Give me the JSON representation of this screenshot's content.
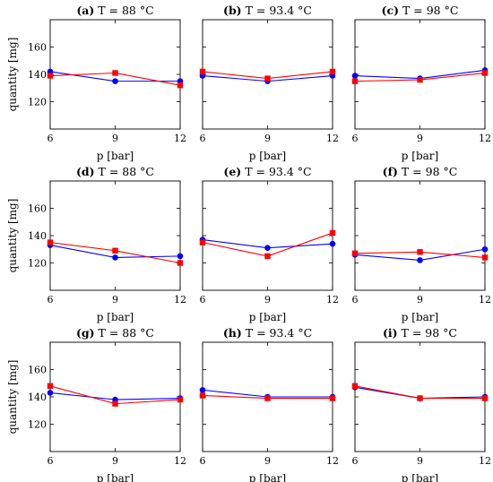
{
  "figure": {
    "colors": {
      "blue": "#0000ff",
      "red": "#ff0000"
    }
  },
  "chart_data": [
    {
      "type": "line",
      "tag": "(a)",
      "title": "T = 88 °C",
      "xlabel": "p [bar]",
      "ylabel": "quantity [mg]",
      "x": [
        6,
        9,
        12
      ],
      "xlim": [
        6,
        12
      ],
      "ylim": [
        100,
        180
      ],
      "xticks": [
        6,
        9,
        12
      ],
      "yticks": [
        120,
        140,
        160
      ],
      "series": [
        {
          "color": "blue",
          "marker": "circle",
          "values": [
            142,
            135,
            135
          ]
        },
        {
          "color": "red",
          "marker": "square",
          "values": [
            139,
            141,
            132
          ]
        }
      ]
    },
    {
      "type": "line",
      "tag": "(b)",
      "title": "T = 93.4 °C",
      "xlabel": "p [bar]",
      "ylabel": "",
      "x": [
        6,
        9,
        12
      ],
      "xlim": [
        6,
        12
      ],
      "ylim": [
        100,
        180
      ],
      "xticks": [
        6,
        9,
        12
      ],
      "yticks": [],
      "series": [
        {
          "color": "blue",
          "marker": "circle",
          "values": [
            139,
            135,
            139
          ]
        },
        {
          "color": "red",
          "marker": "square",
          "values": [
            142,
            137,
            142
          ]
        }
      ]
    },
    {
      "type": "line",
      "tag": "(c)",
      "title": "T = 98 °C",
      "xlabel": "p [bar]",
      "ylabel": "",
      "x": [
        6,
        9,
        12
      ],
      "xlim": [
        6,
        12
      ],
      "ylim": [
        100,
        180
      ],
      "xticks": [
        6,
        9,
        12
      ],
      "yticks": [],
      "series": [
        {
          "color": "blue",
          "marker": "circle",
          "values": [
            139,
            137,
            143
          ]
        },
        {
          "color": "red",
          "marker": "square",
          "values": [
            135,
            136,
            141
          ]
        }
      ]
    },
    {
      "type": "line",
      "tag": "(d)",
      "title": "T = 88 °C",
      "xlabel": "p [bar]",
      "ylabel": "quantity [mg]",
      "x": [
        6,
        9,
        12
      ],
      "xlim": [
        6,
        12
      ],
      "ylim": [
        100,
        180
      ],
      "xticks": [
        6,
        9,
        12
      ],
      "yticks": [
        120,
        140,
        160
      ],
      "series": [
        {
          "color": "blue",
          "marker": "circle",
          "values": [
            133,
            124,
            125
          ]
        },
        {
          "color": "red",
          "marker": "square",
          "values": [
            135,
            129,
            120
          ]
        }
      ]
    },
    {
      "type": "line",
      "tag": "(e)",
      "title": "T = 93.4 °C",
      "xlabel": "p [bar]",
      "ylabel": "",
      "x": [
        6,
        9,
        12
      ],
      "xlim": [
        6,
        12
      ],
      "ylim": [
        100,
        180
      ],
      "xticks": [
        6,
        9,
        12
      ],
      "yticks": [],
      "series": [
        {
          "color": "blue",
          "marker": "circle",
          "values": [
            137,
            131,
            134
          ]
        },
        {
          "color": "red",
          "marker": "square",
          "values": [
            135,
            125,
            142
          ]
        }
      ]
    },
    {
      "type": "line",
      "tag": "(f)",
      "title": "T = 98 °C",
      "xlabel": "p [bar]",
      "ylabel": "",
      "x": [
        6,
        9,
        12
      ],
      "xlim": [
        6,
        12
      ],
      "ylim": [
        100,
        180
      ],
      "xticks": [
        6,
        9,
        12
      ],
      "yticks": [],
      "series": [
        {
          "color": "blue",
          "marker": "circle",
          "values": [
            126,
            122,
            130
          ]
        },
        {
          "color": "red",
          "marker": "square",
          "values": [
            127,
            128,
            124
          ]
        }
      ]
    },
    {
      "type": "line",
      "tag": "(g)",
      "title": "T = 88 °C",
      "xlabel": "p [bar]",
      "ylabel": "quantity [mg]",
      "x": [
        6,
        9,
        12
      ],
      "xlim": [
        6,
        12
      ],
      "ylim": [
        100,
        180
      ],
      "xticks": [
        6,
        9,
        12
      ],
      "yticks": [
        120,
        140,
        160
      ],
      "series": [
        {
          "color": "blue",
          "marker": "circle",
          "values": [
            143,
            138,
            139
          ]
        },
        {
          "color": "red",
          "marker": "square",
          "values": [
            148,
            135,
            138
          ]
        }
      ]
    },
    {
      "type": "line",
      "tag": "(h)",
      "title": "T = 93.4 °C",
      "xlabel": "p [bar]",
      "ylabel": "",
      "x": [
        6,
        9,
        12
      ],
      "xlim": [
        6,
        12
      ],
      "ylim": [
        100,
        180
      ],
      "xticks": [
        6,
        9,
        12
      ],
      "yticks": [],
      "series": [
        {
          "color": "blue",
          "marker": "circle",
          "values": [
            145,
            140,
            140
          ]
        },
        {
          "color": "red",
          "marker": "square",
          "values": [
            141,
            139,
            139
          ]
        }
      ]
    },
    {
      "type": "line",
      "tag": "(i)",
      "title": "T = 98 °C",
      "xlabel": "p [bar]",
      "ylabel": "",
      "x": [
        6,
        9,
        12
      ],
      "xlim": [
        6,
        12
      ],
      "ylim": [
        100,
        180
      ],
      "xticks": [
        6,
        9,
        12
      ],
      "yticks": [],
      "series": [
        {
          "color": "blue",
          "marker": "circle",
          "values": [
            147,
            139,
            140
          ]
        },
        {
          "color": "red",
          "marker": "square",
          "values": [
            148,
            139,
            139
          ]
        }
      ]
    }
  ]
}
